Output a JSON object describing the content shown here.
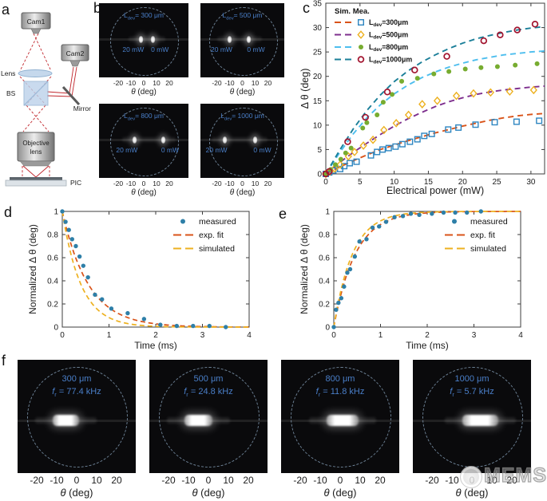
{
  "figure": {
    "background": "#ffffff"
  },
  "colors": {
    "annotation_blue": "#4a7fc9",
    "circle_dash": "#7e96ad",
    "axis": "#3c3c3c",
    "beam_red": "#c1272d",
    "measured_dot": "#2e7fa8",
    "exp_fit_dash": "#d95319",
    "simulated_dash": "#edb120"
  },
  "panels": {
    "a": {
      "letter": "a",
      "labels": {
        "cam1": "Cam1",
        "cam2": "Cam2",
        "lens": "Lens",
        "bs": "BS",
        "mirror": "Mirror",
        "objective_line1": "Objective",
        "objective_line2": "lens",
        "pic": "PIC"
      }
    },
    "b": {
      "letter": "b",
      "xticks": [
        "-20",
        "-10",
        "0",
        "10",
        "20"
      ],
      "xlabel": "θ (deg)",
      "images": [
        {
          "dev_base": "L",
          "dev_sub": "dev",
          "dev_rest": "= 300 μm",
          "power_left": "20 mW",
          "power_right": "0 mW",
          "spots_theta": [
            -2,
            7
          ]
        },
        {
          "dev_base": "L",
          "dev_sub": "dev",
          "dev_rest": "= 500 μm",
          "power_left": "20 mW",
          "power_right": "0 mW",
          "spots_theta": [
            -10,
            5
          ]
        },
        {
          "dev_base": "L",
          "dev_sub": "dev",
          "dev_rest": "= 800 μm",
          "power_left": "20 mW",
          "power_right": "0 mW",
          "spots_theta": [
            -7,
            15
          ]
        },
        {
          "dev_base": "L",
          "dev_sub": "dev",
          "dev_rest": "= 1000 μm",
          "power_left": "20 mW",
          "power_right": "0 mW",
          "spots_theta": [
            -14,
            10
          ]
        }
      ]
    },
    "c": {
      "letter": "c"
    },
    "d": {
      "letter": "d"
    },
    "e": {
      "letter": "e"
    },
    "f": {
      "letter": "f",
      "xticks": [
        "-20",
        "-10",
        "0",
        "10",
        "20"
      ],
      "xlabel": "θ (deg)",
      "images": [
        {
          "size": "300 μm",
          "freq_base": "f",
          "freq_sub": "r",
          "freq_rest": " = 77.4 kHz",
          "streak_theta": [
            -12,
            1
          ]
        },
        {
          "size": "500 μm",
          "freq_base": "f",
          "freq_sub": "r",
          "freq_rest": " = 24.8 kHz",
          "streak_theta": [
            -12,
            2
          ]
        },
        {
          "size": "800 μm",
          "freq_base": "f",
          "freq_sub": "r",
          "freq_rest": " = 11.8 kHz",
          "streak_theta": [
            -7,
            9
          ]
        },
        {
          "size": "1000 μm",
          "freq_base": "f",
          "freq_sub": "r",
          "freq_rest": " = 5.7 kHz",
          "streak_theta": [
            -5,
            13
          ]
        }
      ]
    }
  },
  "watermark": {
    "text": "MEMS"
  },
  "chart_data": [
    {
      "id": "c",
      "type": "scatter",
      "xlabel": "Electrical power (mW)",
      "ylabel": "Δ θ (deg)",
      "xlim": [
        0,
        32
      ],
      "ylim": [
        0,
        35
      ],
      "xticks": [
        0,
        5,
        10,
        15,
        20,
        25,
        30
      ],
      "yticks": [
        0,
        5,
        10,
        15,
        20,
        25,
        30,
        35
      ],
      "legend_header": "Sim. Mea.",
      "series": [
        {
          "label_base": "L",
          "label_sub": "dev",
          "label_rest": "=300μm",
          "marker": "square-open",
          "marker_color": "#2e86c1",
          "sim_color": "#d95319",
          "measured": [
            [
              0,
              0
            ],
            [
              0.5,
              0.3
            ],
            [
              1.1,
              0.7
            ],
            [
              2.1,
              1.0
            ],
            [
              2.7,
              1.6
            ],
            [
              3.5,
              2.2
            ],
            [
              4.5,
              2.5
            ],
            [
              6.6,
              3.8
            ],
            [
              7.5,
              4.5
            ],
            [
              8.3,
              5.0
            ],
            [
              9.2,
              5.3
            ],
            [
              10.2,
              5.6
            ],
            [
              11.2,
              6.1
            ],
            [
              12.3,
              6.6
            ],
            [
              13.4,
              7.1
            ],
            [
              14.4,
              7.8
            ],
            [
              15.5,
              8.2
            ],
            [
              17.9,
              9.1
            ],
            [
              19.4,
              9.5
            ],
            [
              21.9,
              10.1
            ],
            [
              24.7,
              10.6
            ],
            [
              27.9,
              10.7
            ],
            [
              31.2,
              10.9
            ]
          ],
          "sim": [
            [
              0,
              0
            ],
            [
              2,
              1.4
            ],
            [
              4,
              2.7
            ],
            [
              6,
              3.9
            ],
            [
              8,
              5.0
            ],
            [
              10,
              5.9
            ],
            [
              12,
              6.8
            ],
            [
              14,
              7.6
            ],
            [
              16,
              8.4
            ],
            [
              18,
              9.1
            ],
            [
              20,
              9.8
            ],
            [
              22,
              10.4
            ],
            [
              24,
              11.0
            ],
            [
              26,
              11.5
            ],
            [
              28,
              11.9
            ],
            [
              30,
              12.2
            ],
            [
              32,
              12.4
            ]
          ]
        },
        {
          "label_base": "L",
          "label_sub": "dev",
          "label_rest": "=500μm",
          "marker": "diamond-open",
          "marker_color": "#edb120",
          "sim_color": "#7e2f8e",
          "measured": [
            [
              0,
              0
            ],
            [
              0.6,
              0.5
            ],
            [
              1.3,
              1.1
            ],
            [
              2.1,
              1.9
            ],
            [
              3.3,
              3.6
            ],
            [
              4.2,
              4.5
            ],
            [
              5.5,
              5.8
            ],
            [
              6.9,
              7.0
            ],
            [
              8.5,
              9.0
            ],
            [
              10.3,
              10.4
            ],
            [
              12.1,
              12.1
            ],
            [
              14.1,
              14.3
            ],
            [
              16.3,
              15.0
            ],
            [
              19.1,
              16.0
            ],
            [
              21.6,
              16.5
            ],
            [
              24.1,
              16.7
            ],
            [
              26.9,
              16.9
            ],
            [
              30.4,
              17.2
            ]
          ],
          "sim": [
            [
              0,
              0
            ],
            [
              2,
              2.3
            ],
            [
              4,
              4.4
            ],
            [
              6,
              6.3
            ],
            [
              8,
              8.1
            ],
            [
              10,
              9.8
            ],
            [
              12,
              11.3
            ],
            [
              14,
              12.6
            ],
            [
              16,
              13.8
            ],
            [
              18,
              14.8
            ],
            [
              20,
              15.6
            ],
            [
              22,
              16.3
            ],
            [
              24,
              16.8
            ],
            [
              26,
              17.2
            ],
            [
              28,
              17.5
            ],
            [
              30,
              17.8
            ],
            [
              32,
              18.0
            ]
          ]
        },
        {
          "label_base": "L",
          "label_sub": "dev",
          "label_rest": "=800μm",
          "marker": "circle-filled",
          "marker_color": "#77ac30",
          "sim_color": "#4dbeee",
          "measured": [
            [
              0,
              0
            ],
            [
              0.7,
              0.9
            ],
            [
              1.4,
              1.9
            ],
            [
              2.2,
              3.0
            ],
            [
              2.9,
              4.3
            ],
            [
              3.7,
              5.3
            ],
            [
              5.4,
              9.4
            ],
            [
              6.0,
              10.5
            ],
            [
              7.5,
              12.1
            ],
            [
              8.4,
              14.7
            ],
            [
              9.7,
              16.3
            ],
            [
              11.1,
              19.0
            ],
            [
              13.4,
              19.6
            ],
            [
              15.8,
              20.5
            ],
            [
              18.0,
              21.0
            ],
            [
              20.4,
              21.5
            ],
            [
              22.7,
              21.8
            ],
            [
              25.1,
              22.0
            ],
            [
              27.7,
              22.3
            ],
            [
              30.9,
              22.6
            ]
          ],
          "sim": [
            [
              0,
              0
            ],
            [
              2,
              4.3
            ],
            [
              4,
              8.2
            ],
            [
              6,
              11.5
            ],
            [
              8,
              14.2
            ],
            [
              10,
              16.4
            ],
            [
              12,
              18.2
            ],
            [
              14,
              19.7
            ],
            [
              16,
              20.9
            ],
            [
              18,
              21.9
            ],
            [
              20,
              22.7
            ],
            [
              22,
              23.4
            ],
            [
              24,
              23.9
            ],
            [
              26,
              24.4
            ],
            [
              28,
              24.7
            ],
            [
              30,
              25.0
            ],
            [
              32,
              25.2
            ]
          ]
        },
        {
          "label_base": "L",
          "label_sub": "dev",
          "label_rest": "=1000μm",
          "marker": "circle-open",
          "marker_color": "#a2142f",
          "sim_color": "#1b7f99",
          "measured": [
            [
              0,
              0
            ],
            [
              0.5,
              0.5
            ],
            [
              3.2,
              6.6
            ],
            [
              5.8,
              11.6
            ],
            [
              9.0,
              16.8
            ],
            [
              13.0,
              21.3
            ],
            [
              17.7,
              24.1
            ],
            [
              23.1,
              27.3
            ],
            [
              25.5,
              28.5
            ],
            [
              28.0,
              29.5
            ],
            [
              30.6,
              30.7
            ]
          ],
          "sim": [
            [
              0,
              0
            ],
            [
              2,
              4.8
            ],
            [
              4,
              9.2
            ],
            [
              6,
              13.0
            ],
            [
              8,
              16.2
            ],
            [
              10,
              18.9
            ],
            [
              12,
              21.1
            ],
            [
              14,
              22.9
            ],
            [
              16,
              24.4
            ],
            [
              18,
              25.7
            ],
            [
              20,
              26.8
            ],
            [
              22,
              27.7
            ],
            [
              24,
              28.4
            ],
            [
              26,
              29.0
            ],
            [
              28,
              29.5
            ],
            [
              30,
              29.9
            ],
            [
              32,
              30.2
            ]
          ]
        }
      ]
    },
    {
      "id": "d",
      "type": "line",
      "xlabel": "Time (ms)",
      "ylabel": "Normalized Δ θ (deg)",
      "xlim": [
        0,
        4
      ],
      "ylim": [
        0,
        1
      ],
      "xticks": [
        0,
        1,
        2,
        3,
        4
      ],
      "yticks": [
        0,
        0.2,
        0.4,
        0.6,
        0.8,
        1
      ],
      "legend": [
        "measured",
        "exp. fit",
        "simulated"
      ],
      "measured": [
        [
          0,
          1
        ],
        [
          0.07,
          0.91
        ],
        [
          0.14,
          0.84
        ],
        [
          0.21,
          0.76
        ],
        [
          0.29,
          0.7
        ],
        [
          0.37,
          0.61
        ],
        [
          0.45,
          0.53
        ],
        [
          0.55,
          0.43
        ],
        [
          0.7,
          0.28
        ],
        [
          0.85,
          0.24
        ],
        [
          1.05,
          0.16
        ],
        [
          1.4,
          0.12
        ],
        [
          1.75,
          0.07
        ],
        [
          2.1,
          0.02
        ],
        [
          2.45,
          0.01
        ],
        [
          2.8,
          0.01
        ],
        [
          3.15,
          0.01
        ],
        [
          3.5,
          0.0
        ]
      ],
      "exp_fit": {
        "kind": "exp-decay",
        "tau_ms": 0.56
      },
      "simulated": {
        "kind": "exp-decay",
        "tau_ms": 0.4
      }
    },
    {
      "id": "e",
      "type": "line",
      "xlabel": "Time (ms)",
      "ylabel": "Normalized Δ θ (deg)",
      "xlim": [
        0,
        4
      ],
      "ylim": [
        0,
        1
      ],
      "xticks": [
        0,
        1,
        2,
        3,
        4
      ],
      "yticks": [
        0,
        0.2,
        0.4,
        0.6,
        0.8,
        1
      ],
      "legend": [
        "measured",
        "exp. fit",
        "simulated"
      ],
      "measured": [
        [
          0,
          0
        ],
        [
          0.05,
          0.15
        ],
        [
          0.1,
          0.21
        ],
        [
          0.16,
          0.25
        ],
        [
          0.22,
          0.35
        ],
        [
          0.29,
          0.47
        ],
        [
          0.35,
          0.5
        ],
        [
          0.45,
          0.61
        ],
        [
          0.55,
          0.74
        ],
        [
          0.7,
          0.76
        ],
        [
          0.83,
          0.86
        ],
        [
          0.97,
          0.87
        ],
        [
          1.12,
          0.91
        ],
        [
          1.3,
          0.95
        ],
        [
          1.48,
          0.96
        ],
        [
          1.65,
          0.98
        ],
        [
          1.83,
          0.97
        ],
        [
          2.1,
          0.98
        ],
        [
          2.35,
          0.99
        ],
        [
          2.6,
          0.99
        ],
        [
          2.85,
          0.99
        ],
        [
          3.15,
          1.0
        ]
      ],
      "exp_fit": {
        "kind": "exp-rise",
        "tau_ms": 0.46
      },
      "simulated": {
        "kind": "exp-rise",
        "tau_ms": 0.4
      }
    }
  ]
}
